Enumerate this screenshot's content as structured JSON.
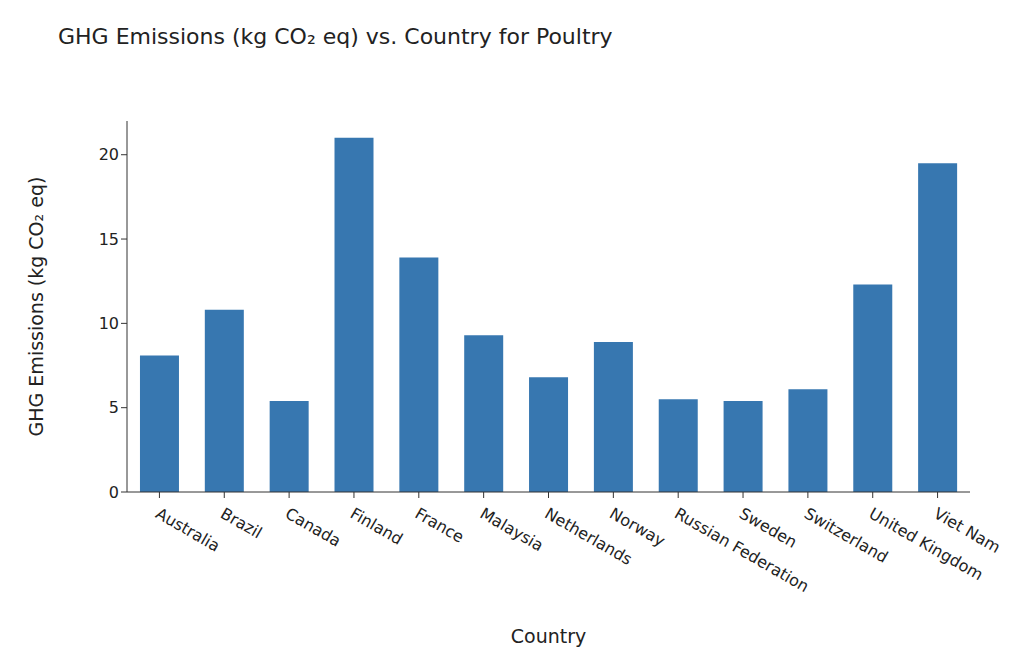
{
  "chart_data": {
    "type": "bar",
    "title": "GHG Emissions (kg CO₂ eq) vs. Country for Poultry",
    "x_label": "Country",
    "y_label": "GHG Emissions (kg CO₂ eq)",
    "categories": [
      "Australia",
      "Brazil",
      "Canada",
      "Finland",
      "France",
      "Malaysia",
      "Netherlands",
      "Norway",
      "Russian Federation",
      "Sweden",
      "Switzerland",
      "United Kingdom",
      "Viet Nam"
    ],
    "values": [
      8.1,
      10.8,
      5.4,
      21.0,
      13.9,
      9.3,
      6.8,
      8.9,
      5.5,
      5.4,
      6.1,
      12.3,
      19.5
    ],
    "color": "#3777b0",
    "ylim": [
      0,
      22
    ],
    "yticks": [
      0,
      5,
      10,
      15,
      20
    ],
    "grid": false
  }
}
